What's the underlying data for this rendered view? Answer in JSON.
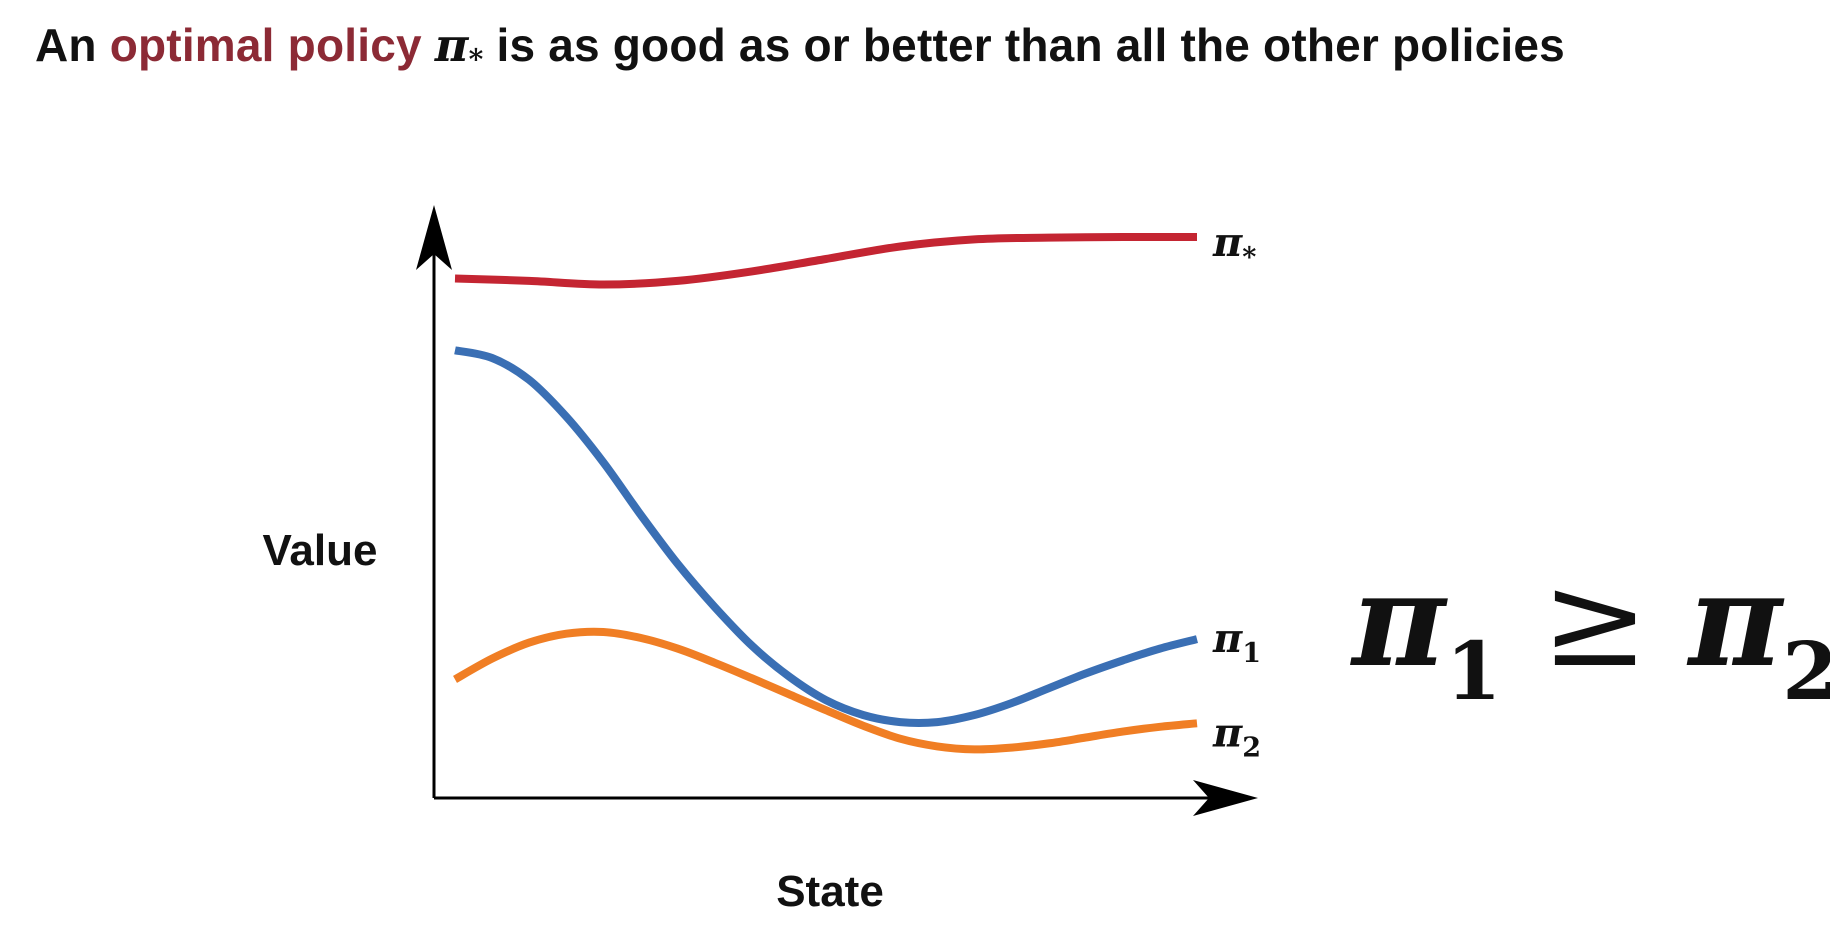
{
  "headline": {
    "lead": "An",
    "accent": "optimal policy",
    "symbol": "π",
    "symbol_sub": "*",
    "rest": "is as good as or better than all the other policies",
    "accent_color": "#8c2a35"
  },
  "relation": {
    "left_symbol": "π",
    "left_sub": "1",
    "operator": "≥",
    "right_symbol": "π",
    "right_sub": "2"
  },
  "chart_data": {
    "type": "line",
    "xlabel": "State",
    "ylabel": "Value",
    "ticks": "none",
    "grid": false,
    "xlim": [
      0,
      1
    ],
    "ylim": [
      0,
      1
    ],
    "legend": "inline-right",
    "series": [
      {
        "name": "π",
        "sub": "*",
        "color": "#c42532",
        "x": [
          0,
          0.1,
          0.2,
          0.3,
          0.4,
          0.5,
          0.6,
          0.7,
          0.8,
          0.9,
          1.0
        ],
        "y": [
          0.876,
          0.872,
          0.866,
          0.872,
          0.888,
          0.909,
          0.93,
          0.942,
          0.945,
          0.946,
          0.946
        ]
      },
      {
        "name": "π",
        "sub": "1",
        "color": "#3a6fb4",
        "x": [
          0,
          0.05,
          0.1,
          0.15,
          0.2,
          0.25,
          0.3,
          0.35,
          0.4,
          0.45,
          0.5,
          0.55,
          0.6,
          0.65,
          0.7,
          0.75,
          0.8,
          0.85,
          0.9,
          0.95,
          1.0
        ],
        "y": [
          0.755,
          0.742,
          0.705,
          0.643,
          0.566,
          0.478,
          0.395,
          0.322,
          0.257,
          0.205,
          0.165,
          0.14,
          0.128,
          0.128,
          0.14,
          0.16,
          0.185,
          0.21,
          0.232,
          0.252,
          0.268
        ]
      },
      {
        "name": "π",
        "sub": "2",
        "color": "#f07e24",
        "x": [
          0,
          0.05,
          0.1,
          0.15,
          0.2,
          0.25,
          0.3,
          0.35,
          0.4,
          0.45,
          0.5,
          0.55,
          0.6,
          0.65,
          0.7,
          0.75,
          0.8,
          0.85,
          0.9,
          0.95,
          1.0
        ],
        "y": [
          0.2,
          0.235,
          0.262,
          0.277,
          0.28,
          0.27,
          0.252,
          0.228,
          0.202,
          0.175,
          0.148,
          0.122,
          0.1,
          0.087,
          0.082,
          0.085,
          0.092,
          0.102,
          0.112,
          0.12,
          0.126
        ]
      }
    ]
  }
}
